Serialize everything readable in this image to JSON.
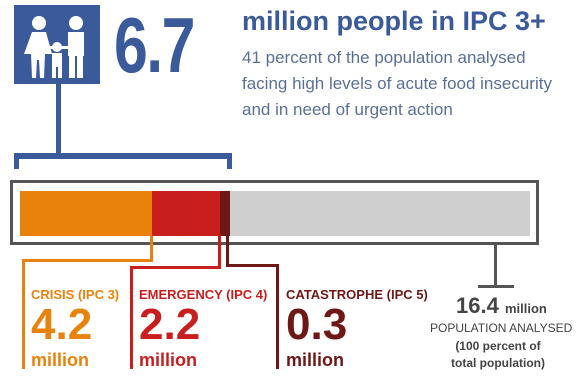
{
  "header": {
    "big_number": "6.7",
    "headline": "million people in IPC 3+",
    "subtext": "41 percent of the population analysed facing high levels of acute food insecurity and in need of urgent action",
    "icon": "family-icon"
  },
  "colors": {
    "blue": "#3a5a9a",
    "crisis": "#e8820c",
    "emergency": "#c81e1e",
    "catastrophe": "#6e1717",
    "remaining": "#cfcfcf"
  },
  "bar": {
    "crisis_value": 4.2,
    "emergency_value": 2.2,
    "catastrophe_value": 0.3,
    "total_value": 16.4
  },
  "categories": [
    {
      "label": "CRISIS (IPC 3)",
      "value": "4.2",
      "unit": "million"
    },
    {
      "label": "EMERGENCY (IPC 4)",
      "value": "2.2",
      "unit": "million"
    },
    {
      "label": "CATASTROPHE (IPC 5)",
      "value": "0.3",
      "unit": "million"
    }
  ],
  "population": {
    "value": "16.4",
    "unit": "million",
    "label": "POPULATION ANALYSED",
    "note": "(100 percent of total population)"
  }
}
